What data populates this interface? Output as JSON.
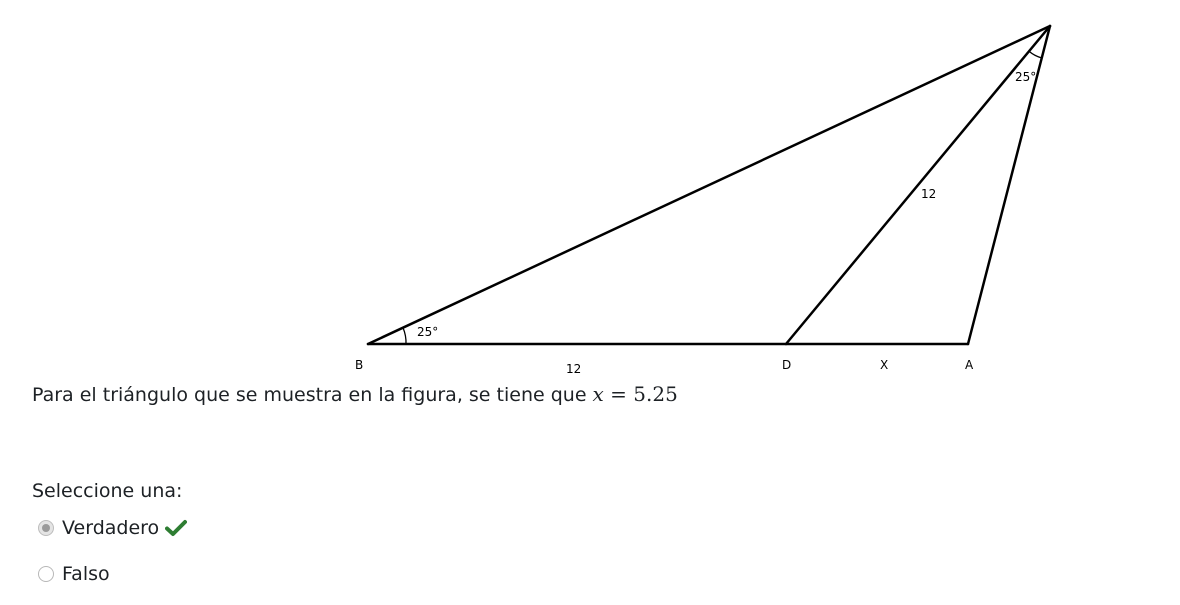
{
  "figure": {
    "vertex_b": "B",
    "vertex_d": "D",
    "vertex_a": "A",
    "segment_bd": "12",
    "segment_da": "X",
    "segment_cd": "12",
    "angle_b": "25°",
    "angle_c": "25°"
  },
  "question": {
    "text": "Para el triángulo que se muestra en la figura, se tiene que ",
    "math_var": "x",
    "math_rest": " = 5.25"
  },
  "prompt": "Seleccione una:",
  "options": [
    {
      "label": "Verdadero",
      "selected": true,
      "correct": true
    },
    {
      "label": "Falso",
      "selected": false
    }
  ],
  "colors": {
    "correct_check": "#2e7d32"
  }
}
